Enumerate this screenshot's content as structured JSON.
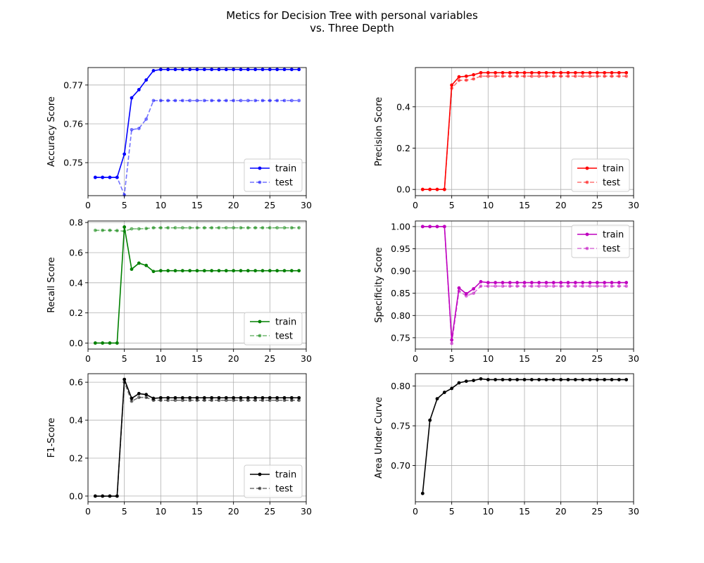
{
  "figure": {
    "title_line1": "Metics for Decision Tree with personal variables",
    "title_line2": "vs. Three Depth"
  },
  "chart_data": [
    {
      "type": "line",
      "ylabel": "Accuracy Score",
      "xlim": [
        0,
        30
      ],
      "ylim": [
        0.7415,
        0.7745
      ],
      "xticks": [
        0,
        5,
        10,
        15,
        20,
        25,
        30
      ],
      "yticks": [
        0.75,
        0.76,
        0.77
      ],
      "ytick_labels": [
        "0.75",
        "0.76",
        "0.77"
      ],
      "grid": true,
      "legend_position": "lower-right",
      "x": [
        1,
        2,
        3,
        4,
        5,
        6,
        7,
        8,
        9,
        10,
        11,
        12,
        13,
        14,
        15,
        16,
        17,
        18,
        19,
        20,
        21,
        22,
        23,
        24,
        25,
        26,
        27,
        28,
        29
      ],
      "series": [
        {
          "name": "train",
          "color": "#0000ff",
          "values": [
            0.7462,
            0.7462,
            0.7462,
            0.7462,
            0.7522,
            0.7667,
            0.7688,
            0.7713,
            0.7737,
            0.774,
            0.774,
            0.774,
            0.774,
            0.774,
            0.774,
            0.774,
            0.774,
            0.774,
            0.774,
            0.774,
            0.774,
            0.774,
            0.774,
            0.774,
            0.774,
            0.774,
            0.774,
            0.774,
            0.774
          ]
        },
        {
          "name": "test",
          "color": "#0000ff",
          "values": [
            0.7462,
            0.7462,
            0.7462,
            0.7462,
            0.7417,
            0.7585,
            0.7588,
            0.7612,
            0.766,
            0.766,
            0.766,
            0.766,
            0.766,
            0.766,
            0.766,
            0.766,
            0.766,
            0.766,
            0.766,
            0.766,
            0.766,
            0.766,
            0.766,
            0.766,
            0.766,
            0.766,
            0.766,
            0.766,
            0.766
          ]
        }
      ]
    },
    {
      "type": "line",
      "ylabel": "Precision Score",
      "xlim": [
        0,
        30
      ],
      "ylim": [
        -0.03,
        0.59
      ],
      "xticks": [
        0,
        5,
        10,
        15,
        20,
        25,
        30
      ],
      "yticks": [
        0.0,
        0.2,
        0.4
      ],
      "ytick_labels": [
        "0.0",
        "0.2",
        "0.4"
      ],
      "grid": true,
      "legend_position": "lower-right",
      "x": [
        1,
        2,
        3,
        4,
        5,
        6,
        7,
        8,
        9,
        10,
        11,
        12,
        13,
        14,
        15,
        16,
        17,
        18,
        19,
        20,
        21,
        22,
        23,
        24,
        25,
        26,
        27,
        28,
        29
      ],
      "series": [
        {
          "name": "train",
          "color": "#ff0000",
          "values": [
            0,
            0,
            0,
            0,
            0.505,
            0.545,
            0.548,
            0.555,
            0.565,
            0.565,
            0.565,
            0.565,
            0.565,
            0.565,
            0.565,
            0.565,
            0.565,
            0.565,
            0.565,
            0.565,
            0.565,
            0.565,
            0.565,
            0.565,
            0.565,
            0.565,
            0.565,
            0.565,
            0.565
          ]
        },
        {
          "name": "test",
          "color": "#ff0000",
          "values": [
            0,
            0,
            0,
            0,
            0.49,
            0.528,
            0.529,
            0.535,
            0.548,
            0.548,
            0.548,
            0.548,
            0.548,
            0.548,
            0.548,
            0.548,
            0.548,
            0.548,
            0.548,
            0.548,
            0.548,
            0.548,
            0.548,
            0.548,
            0.548,
            0.548,
            0.548,
            0.548,
            0.548
          ]
        }
      ]
    },
    {
      "type": "line",
      "ylabel": "Recall Score",
      "xlim": [
        0,
        30
      ],
      "ylim": [
        -0.04,
        0.81
      ],
      "xticks": [
        0,
        5,
        10,
        15,
        20,
        25,
        30
      ],
      "yticks": [
        0.0,
        0.2,
        0.4,
        0.6,
        0.8
      ],
      "ytick_labels": [
        "0.0",
        "0.2",
        "0.4",
        "0.6",
        "0.8"
      ],
      "grid": true,
      "legend_position": "lower-right",
      "x": [
        1,
        2,
        3,
        4,
        5,
        6,
        7,
        8,
        9,
        10,
        11,
        12,
        13,
        14,
        15,
        16,
        17,
        18,
        19,
        20,
        21,
        22,
        23,
        24,
        25,
        26,
        27,
        28,
        29
      ],
      "series": [
        {
          "name": "train",
          "color": "#008000",
          "values": [
            0,
            0,
            0,
            0,
            0.77,
            0.49,
            0.53,
            0.515,
            0.475,
            0.48,
            0.48,
            0.48,
            0.48,
            0.48,
            0.48,
            0.48,
            0.48,
            0.48,
            0.48,
            0.48,
            0.48,
            0.48,
            0.48,
            0.48,
            0.48,
            0.48,
            0.48,
            0.48,
            0.48
          ]
        },
        {
          "name": "test",
          "color": "#008000",
          "values": [
            0.748,
            0.748,
            0.748,
            0.746,
            0.742,
            0.758,
            0.758,
            0.76,
            0.765,
            0.765,
            0.765,
            0.765,
            0.765,
            0.765,
            0.765,
            0.765,
            0.765,
            0.765,
            0.765,
            0.765,
            0.765,
            0.765,
            0.765,
            0.765,
            0.765,
            0.765,
            0.765,
            0.765,
            0.765
          ]
        }
      ]
    },
    {
      "type": "line",
      "ylabel": "Specificity Score",
      "xlim": [
        0,
        30
      ],
      "ylim": [
        0.7245,
        1.0126
      ],
      "xticks": [
        0,
        5,
        10,
        15,
        20,
        25,
        30
      ],
      "yticks": [
        0.75,
        0.8,
        0.85,
        0.9,
        0.95,
        1.0
      ],
      "ytick_labels": [
        "0.75",
        "0.80",
        "0.85",
        "0.90",
        "0.95",
        "1.00"
      ],
      "grid": true,
      "legend_position": "upper-right",
      "x": [
        1,
        2,
        3,
        4,
        5,
        6,
        7,
        8,
        9,
        10,
        11,
        12,
        13,
        14,
        15,
        16,
        17,
        18,
        19,
        20,
        21,
        22,
        23,
        24,
        25,
        26,
        27,
        28,
        29
      ],
      "series": [
        {
          "name": "train",
          "color": "#bf00bf",
          "values": [
            1.0,
            1.0,
            1.0,
            1.0,
            0.745,
            0.862,
            0.849,
            0.86,
            0.876,
            0.874,
            0.874,
            0.874,
            0.874,
            0.874,
            0.874,
            0.874,
            0.874,
            0.874,
            0.874,
            0.874,
            0.874,
            0.874,
            0.874,
            0.874,
            0.874,
            0.874,
            0.874,
            0.874,
            0.874
          ]
        },
        {
          "name": "test",
          "color": "#bf00bf",
          "values": [
            1.0,
            1.0,
            1.0,
            1.0,
            0.737,
            0.855,
            0.844,
            0.85,
            0.866,
            0.866,
            0.866,
            0.866,
            0.866,
            0.866,
            0.866,
            0.866,
            0.866,
            0.866,
            0.866,
            0.866,
            0.866,
            0.866,
            0.866,
            0.866,
            0.866,
            0.866,
            0.866,
            0.866,
            0.866
          ]
        }
      ]
    },
    {
      "type": "line",
      "ylabel": "F1-Score",
      "xlim": [
        0,
        30
      ],
      "ylim": [
        -0.03,
        0.645
      ],
      "xticks": [
        0,
        5,
        10,
        15,
        20,
        25,
        30
      ],
      "yticks": [
        0.0,
        0.2,
        0.4,
        0.6
      ],
      "ytick_labels": [
        "0.0",
        "0.2",
        "0.4",
        "0.6"
      ],
      "grid": true,
      "legend_position": "lower-right",
      "x": [
        1,
        2,
        3,
        4,
        5,
        6,
        7,
        8,
        9,
        10,
        11,
        12,
        13,
        14,
        15,
        16,
        17,
        18,
        19,
        20,
        21,
        22,
        23,
        24,
        25,
        26,
        27,
        28,
        29
      ],
      "series": [
        {
          "name": "train",
          "color": "#000000",
          "values": [
            0,
            0,
            0,
            0,
            0.615,
            0.515,
            0.54,
            0.535,
            0.515,
            0.518,
            0.518,
            0.518,
            0.518,
            0.518,
            0.518,
            0.518,
            0.518,
            0.518,
            0.518,
            0.518,
            0.518,
            0.518,
            0.518,
            0.518,
            0.518,
            0.518,
            0.518,
            0.518,
            0.518
          ]
        },
        {
          "name": "test",
          "color": "#000000",
          "values": [
            0,
            0,
            0,
            0,
            0.6,
            0.5,
            0.52,
            0.52,
            0.505,
            0.505,
            0.505,
            0.505,
            0.505,
            0.505,
            0.505,
            0.505,
            0.505,
            0.505,
            0.505,
            0.505,
            0.505,
            0.505,
            0.505,
            0.505,
            0.505,
            0.505,
            0.505,
            0.505,
            0.505
          ]
        }
      ]
    },
    {
      "type": "line",
      "ylabel": "Area Under Curve",
      "xlim": [
        0,
        30
      ],
      "ylim": [
        0.6545,
        0.8155
      ],
      "xticks": [
        0,
        5,
        10,
        15,
        20,
        25,
        30
      ],
      "yticks": [
        0.7,
        0.75,
        0.8
      ],
      "ytick_labels": [
        "0.70",
        "0.75",
        "0.80"
      ],
      "grid": true,
      "legend_position": "none",
      "x": [
        1,
        2,
        3,
        4,
        5,
        6,
        7,
        8,
        9,
        10,
        11,
        12,
        13,
        14,
        15,
        16,
        17,
        18,
        19,
        20,
        21,
        22,
        23,
        24,
        25,
        26,
        27,
        28,
        29
      ],
      "series": [
        {
          "color": "#000000",
          "values": [
            0.665,
            0.757,
            0.784,
            0.792,
            0.797,
            0.804,
            0.806,
            0.807,
            0.809,
            0.808,
            0.808,
            0.808,
            0.808,
            0.808,
            0.808,
            0.808,
            0.808,
            0.808,
            0.808,
            0.808,
            0.808,
            0.808,
            0.808,
            0.808,
            0.808,
            0.808,
            0.808,
            0.808,
            0.808
          ]
        }
      ]
    }
  ]
}
